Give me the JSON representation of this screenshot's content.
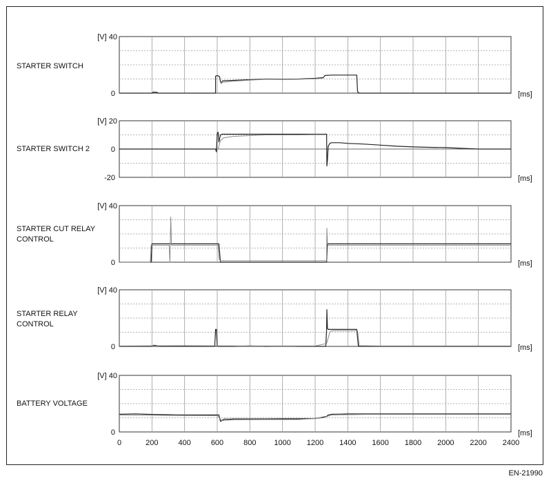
{
  "figure_ref": "EN-21990",
  "chart_data": [
    {
      "type": "line",
      "title": "STARTER SWITCH",
      "yunit": "[V]",
      "xunit": "[ms]",
      "ylim": [
        0,
        40
      ],
      "yticks": [
        0,
        40
      ],
      "xlim": [
        0,
        2400
      ],
      "series": [
        {
          "color": "#222222",
          "x": [
            0,
            200,
            210,
            230,
            240,
            590,
            590,
            600,
            610,
            615,
            620,
            625,
            630,
            640,
            700,
            800,
            900,
            1000,
            1100,
            1200,
            1250,
            1260,
            1300,
            1350,
            1400,
            1455,
            1460,
            1470,
            1500,
            1600,
            1800,
            2000,
            2200,
            2400
          ],
          "y": [
            0,
            0,
            0.8,
            0.6,
            0,
            0,
            12,
            12.5,
            12,
            11.5,
            8,
            7,
            8.5,
            8.8,
            9,
            9.5,
            10,
            9.8,
            10,
            10.5,
            11,
            12.5,
            12.8,
            12.8,
            12.8,
            12.8,
            1,
            0,
            0,
            0,
            0,
            0,
            0,
            0
          ]
        },
        {
          "color": "#888888",
          "x": [
            620,
            700,
            800,
            900,
            1000,
            1100,
            1200,
            1250
          ],
          "y": [
            7.5,
            8.5,
            9.2,
            9.8,
            9.6,
            9.8,
            10.2,
            10.6
          ]
        }
      ]
    },
    {
      "type": "line",
      "title": "STARTER SWITCH 2",
      "yunit": "[V]",
      "xunit": "[ms]",
      "ylim": [
        -20,
        20
      ],
      "yticks": [
        -20,
        0,
        20
      ],
      "xlim": [
        0,
        2400
      ],
      "series": [
        {
          "color": "#222222",
          "x": [
            0,
            590,
            595,
            600,
            605,
            610,
            620,
            630,
            640,
            700,
            800,
            900,
            1000,
            1100,
            1200,
            1270,
            1272,
            1275,
            1280,
            1290,
            1300,
            1350,
            1400,
            1500,
            1600,
            1700,
            1800,
            1900,
            2000,
            2100,
            2200,
            2400
          ],
          "y": [
            0,
            0,
            -2,
            11,
            12,
            5,
            10,
            10.5,
            10.5,
            10.5,
            10.5,
            10.5,
            10.5,
            10.5,
            10.5,
            10.5,
            -12,
            -8,
            2,
            4,
            4.5,
            4.5,
            4,
            3.5,
            2.8,
            2,
            1.5,
            1.2,
            1,
            0.5,
            0,
            0
          ]
        },
        {
          "color": "#888888",
          "x": [
            605,
            620,
            640,
            700,
            800,
            900,
            1000,
            1100,
            1200,
            1260
          ],
          "y": [
            0,
            6,
            8,
            9,
            9.5,
            10,
            10,
            10,
            10.2,
            10.2
          ]
        }
      ]
    },
    {
      "type": "line",
      "title": "STARTER CUT RELAY\nCONTROL",
      "yunit": "[V]",
      "xunit": "[ms]",
      "ylim": [
        0,
        40
      ],
      "yticks": [
        0,
        40
      ],
      "xlim": [
        0,
        2400
      ],
      "series": [
        {
          "color": "#222222",
          "x": [
            0,
            195,
            200,
            300,
            400,
            500,
            600,
            610,
            620,
            700,
            800,
            900,
            1000,
            1100,
            1200,
            1270,
            1275,
            1280,
            1300,
            1400,
            1600,
            1800,
            2000,
            2200,
            2400
          ],
          "y": [
            0,
            0,
            13,
            13,
            13,
            13,
            13,
            13,
            0,
            0,
            0,
            0,
            0,
            0,
            0,
            0,
            13,
            13,
            13,
            13,
            13,
            13,
            13,
            13,
            13
          ]
        },
        {
          "color": "#888888",
          "x": [
            0,
            190,
            195,
            200,
            305,
            310,
            315,
            320,
            330,
            600,
            605,
            612,
            620,
            1200,
            1268,
            1270,
            1272,
            1275,
            1280,
            1300,
            1400,
            1600,
            1800,
            2000,
            2200,
            2400
          ],
          "y": [
            0,
            0,
            12,
            12,
            12,
            0,
            32,
            12,
            12,
            12,
            12,
            2,
            1,
            1,
            1,
            1,
            24,
            14,
            12,
            12,
            12,
            12,
            12,
            12,
            12,
            12
          ]
        }
      ]
    },
    {
      "type": "line",
      "title": "STARTER RELAY\nCONTROL",
      "yunit": "[V]",
      "xunit": "[ms]",
      "ylim": [
        0,
        40
      ],
      "yticks": [
        0,
        40
      ],
      "xlim": [
        0,
        2400
      ],
      "series": [
        {
          "color": "#222222",
          "x": [
            0,
            200,
            210,
            230,
            240,
            585,
            590,
            595,
            600,
            605,
            700,
            800,
            900,
            1000,
            1100,
            1200,
            1265,
            1270,
            1272,
            1275,
            1280,
            1300,
            1400,
            1455,
            1460,
            1465,
            1480,
            1500,
            1600,
            1800,
            2000,
            2200,
            2400
          ],
          "y": [
            0,
            0,
            0.8,
            0.6,
            0,
            0,
            12,
            12,
            0.5,
            0,
            0,
            0.3,
            0,
            0.2,
            0,
            0,
            0,
            12,
            26,
            13,
            12,
            12,
            12,
            12,
            6,
            0,
            0,
            0,
            0,
            0,
            0,
            0,
            0
          ]
        },
        {
          "color": "#888888",
          "x": [
            0,
            400,
            800,
            1200,
            1270,
            1290,
            1300,
            1460,
            1470,
            1600,
            2000,
            2400
          ],
          "y": [
            0.3,
            0.5,
            0.3,
            0.3,
            2,
            10,
            11,
            11,
            0.5,
            0.3,
            0.3,
            0.3
          ]
        }
      ]
    },
    {
      "type": "line",
      "title": "BATTERY VOLTAGE",
      "yunit": "[V]",
      "xunit": "[ms]",
      "ylim": [
        0,
        40
      ],
      "yticks": [
        0,
        40
      ],
      "xlim": [
        0,
        2400
      ],
      "xticks": [
        0,
        200,
        400,
        600,
        800,
        1000,
        1200,
        1400,
        1600,
        1800,
        2000,
        2200,
        2400
      ],
      "series": [
        {
          "color": "#222222",
          "x": [
            0,
            100,
            200,
            300,
            400,
            500,
            600,
            610,
            620,
            630,
            640,
            680,
            700,
            800,
            900,
            1000,
            1100,
            1200,
            1230,
            1250,
            1270,
            1280,
            1300,
            1350,
            1400,
            1500,
            1600,
            1800,
            2000,
            2200,
            2400
          ],
          "y": [
            12.5,
            12.8,
            12.4,
            12.2,
            12,
            12,
            12,
            12,
            7.5,
            8,
            9,
            9,
            9.2,
            9.2,
            9.2,
            9.3,
            9.3,
            9.5,
            10,
            10.5,
            11,
            12,
            12.5,
            12.6,
            12.8,
            12.8,
            12.8,
            12.8,
            12.8,
            12.8,
            12.8
          ]
        },
        {
          "color": "#888888",
          "x": [
            0,
            200,
            400,
            600,
            630,
            700,
            900,
            1100,
            1250,
            1300,
            1500,
            2000,
            2400
          ],
          "y": [
            12,
            11.8,
            11.6,
            11.5,
            8,
            8.6,
            8.8,
            8.8,
            10,
            12,
            12.4,
            12.4,
            12.4
          ]
        }
      ]
    }
  ]
}
